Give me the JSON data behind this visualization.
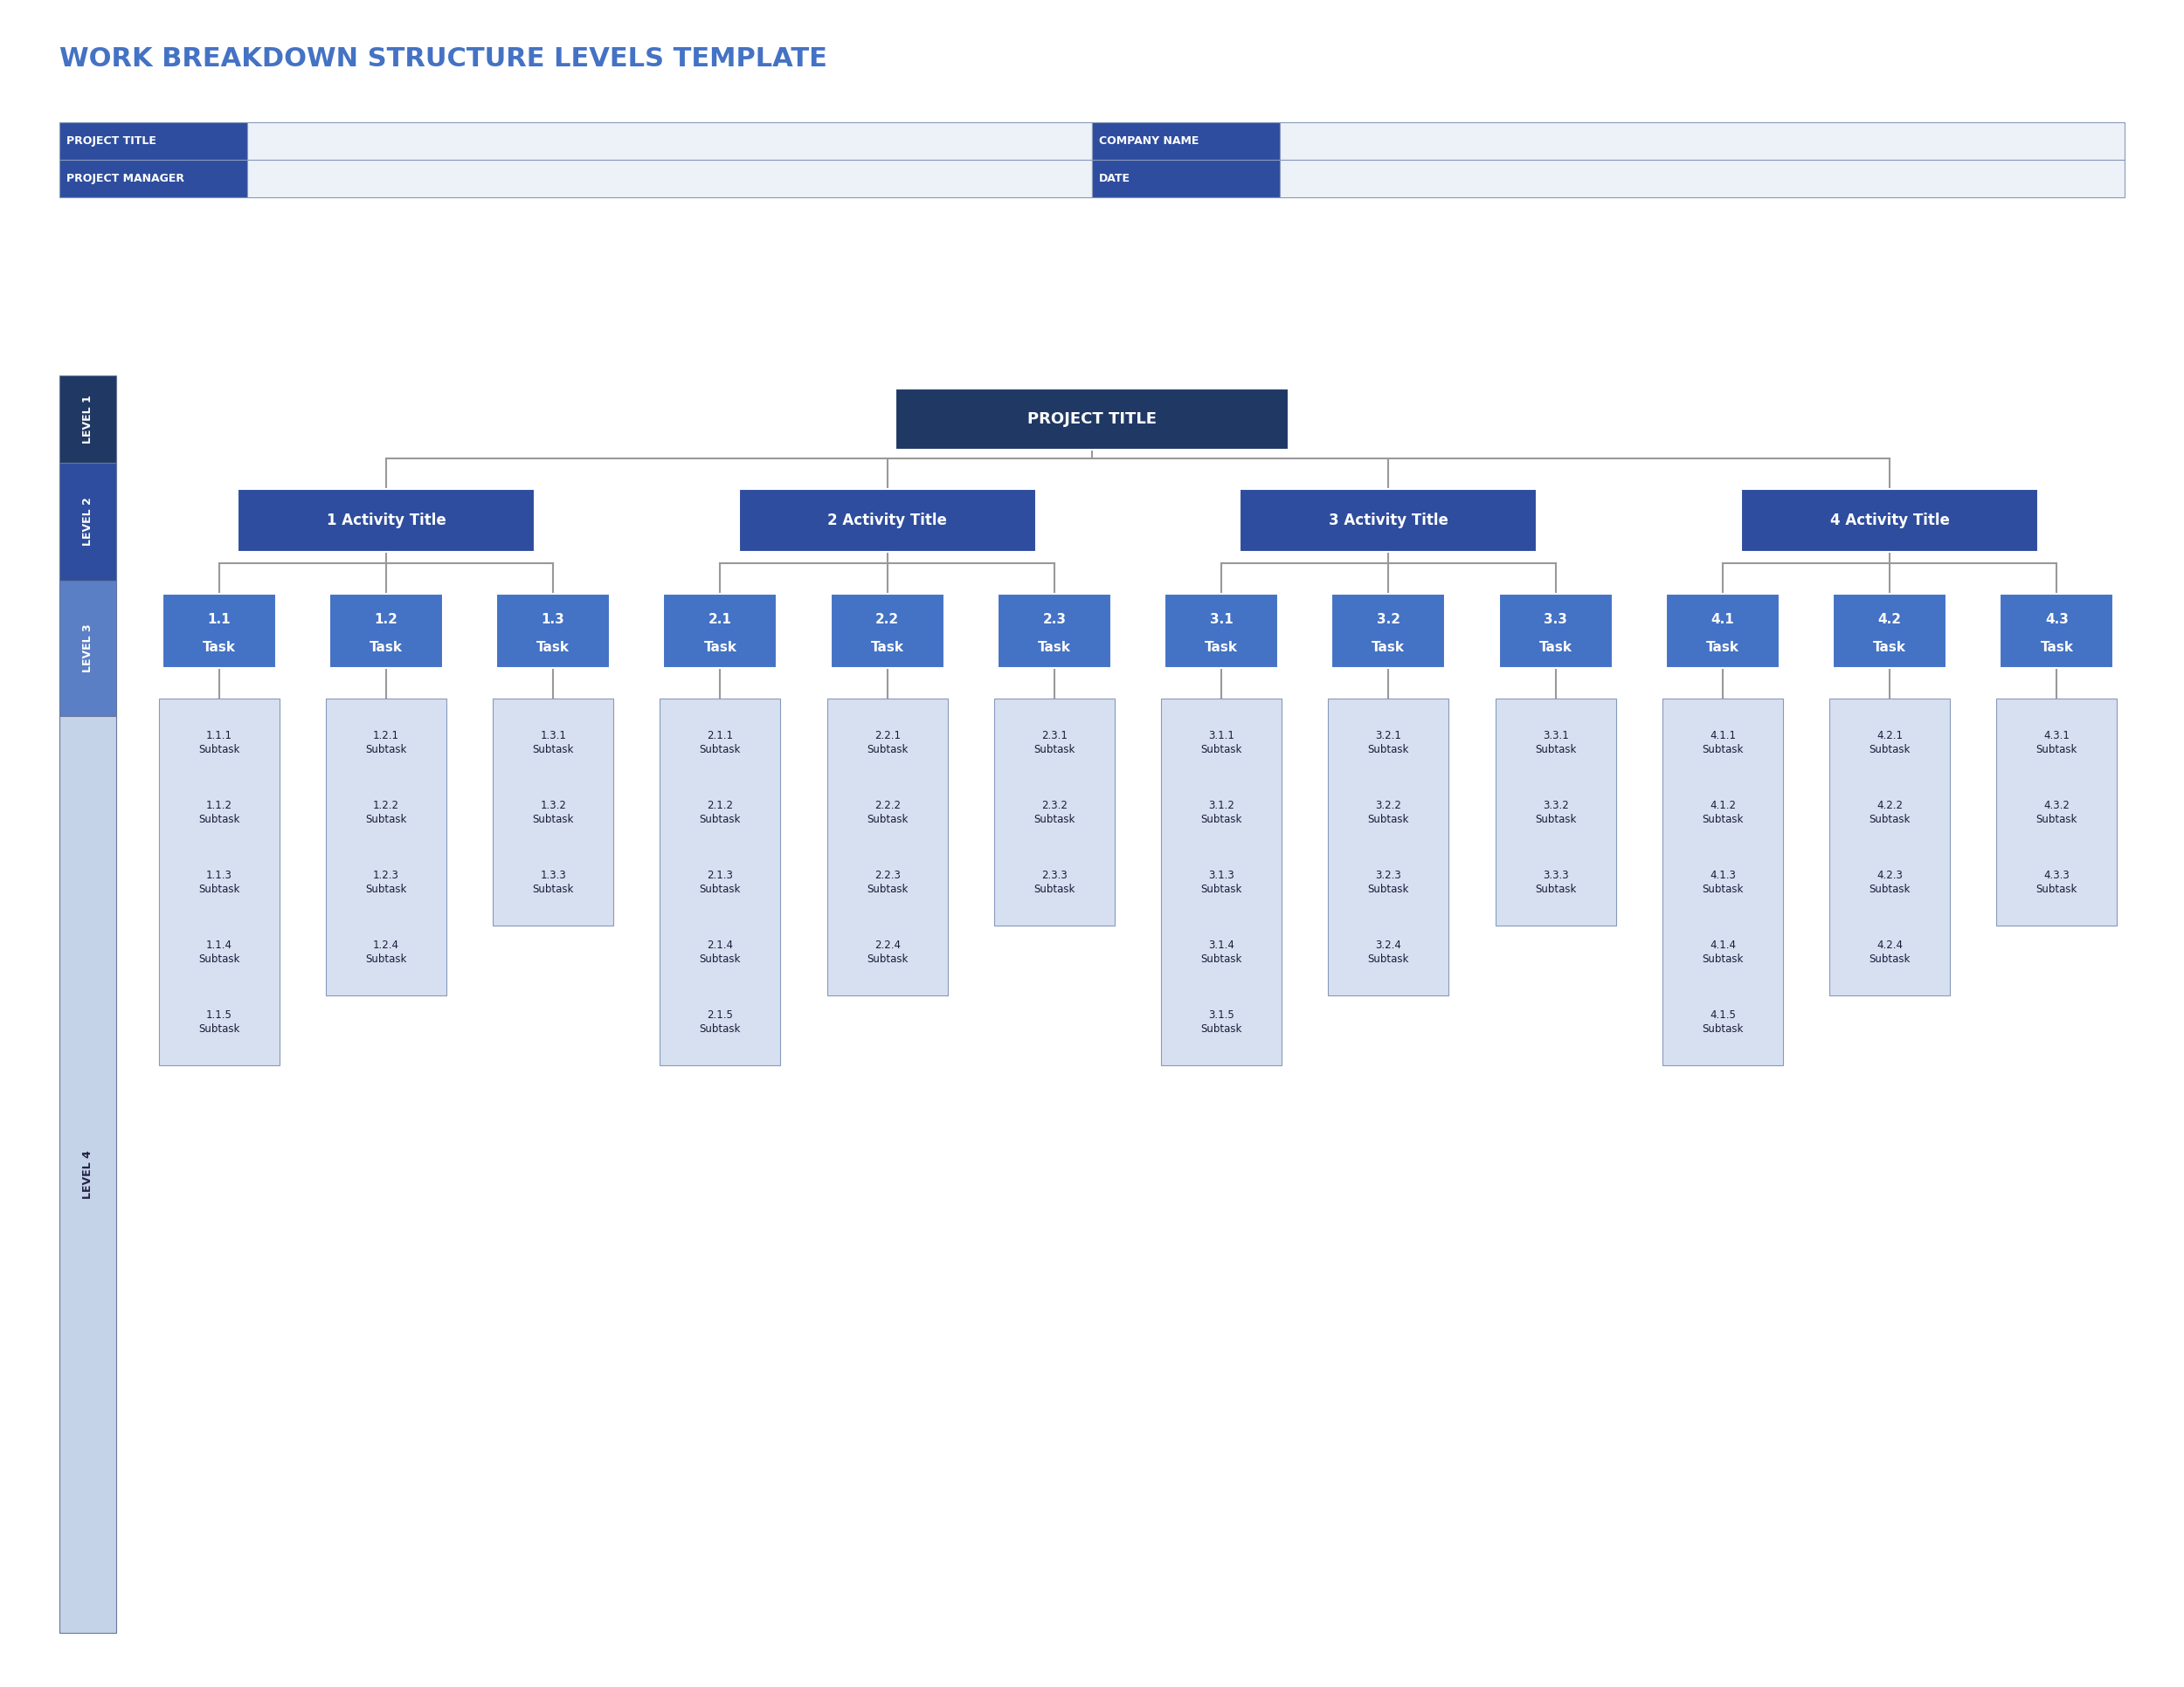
{
  "title": "WORK BREAKDOWN STRUCTURE LEVELS TEMPLATE",
  "title_color": "#4472C4",
  "dark_blue": "#1F3864",
  "medium_blue": "#2E4D9E",
  "light_blue": "#4472C4",
  "pale_blue": "#D6E0F0",
  "line_color": "#999999",
  "level_colors": [
    "#1F3864",
    "#2E4D9E",
    "#5B7FC4",
    "#C5D3E8"
  ],
  "level_text_colors": [
    "white",
    "white",
    "white",
    "#222244"
  ],
  "project_title": "PROJECT TITLE",
  "activities": [
    {
      "title": "1 Activity Title",
      "tasks": [
        {
          "id": "1.1",
          "label": "Task",
          "subtasks": [
            "1.1.1\nSubtask",
            "1.1.2\nSubtask",
            "1.1.3\nSubtask",
            "1.1.4\nSubtask",
            "1.1.5\nSubtask"
          ]
        },
        {
          "id": "1.2",
          "label": "Task",
          "subtasks": [
            "1.2.1\nSubtask",
            "1.2.2\nSubtask",
            "1.2.3\nSubtask",
            "1.2.4\nSubtask"
          ]
        },
        {
          "id": "1.3",
          "label": "Task",
          "subtasks": [
            "1.3.1\nSubtask",
            "1.3.2\nSubtask",
            "1.3.3\nSubtask"
          ]
        }
      ]
    },
    {
      "title": "2 Activity Title",
      "tasks": [
        {
          "id": "2.1",
          "label": "Task",
          "subtasks": [
            "2.1.1\nSubtask",
            "2.1.2\nSubtask",
            "2.1.3\nSubtask",
            "2.1.4\nSubtask",
            "2.1.5\nSubtask"
          ]
        },
        {
          "id": "2.2",
          "label": "Task",
          "subtasks": [
            "2.2.1\nSubtask",
            "2.2.2\nSubtask",
            "2.2.3\nSubtask",
            "2.2.4\nSubtask"
          ]
        },
        {
          "id": "2.3",
          "label": "Task",
          "subtasks": [
            "2.3.1\nSubtask",
            "2.3.2\nSubtask",
            "2.3.3\nSubtask"
          ]
        }
      ]
    },
    {
      "title": "3 Activity Title",
      "tasks": [
        {
          "id": "3.1",
          "label": "Task",
          "subtasks": [
            "3.1.1\nSubtask",
            "3.1.2\nSubtask",
            "3.1.3\nSubtask",
            "3.1.4\nSubtask",
            "3.1.5\nSubtask"
          ]
        },
        {
          "id": "3.2",
          "label": "Task",
          "subtasks": [
            "3.2.1\nSubtask",
            "3.2.2\nSubtask",
            "3.2.3\nSubtask",
            "3.2.4\nSubtask"
          ]
        },
        {
          "id": "3.3",
          "label": "Task",
          "subtasks": [
            "3.3.1\nSubtask",
            "3.3.2\nSubtask",
            "3.3.3\nSubtask"
          ]
        }
      ]
    },
    {
      "title": "4 Activity Title",
      "tasks": [
        {
          "id": "4.1",
          "label": "Task",
          "subtasks": [
            "4.1.1\nSubtask",
            "4.1.2\nSubtask",
            "4.1.3\nSubtask",
            "4.1.4\nSubtask",
            "4.1.5\nSubtask"
          ]
        },
        {
          "id": "4.2",
          "label": "Task",
          "subtasks": [
            "4.2.1\nSubtask",
            "4.2.2\nSubtask",
            "4.2.3\nSubtask",
            "4.2.4\nSubtask"
          ]
        },
        {
          "id": "4.3",
          "label": "Task",
          "subtasks": [
            "4.3.1\nSubtask",
            "4.3.2\nSubtask",
            "4.3.3\nSubtask"
          ]
        }
      ]
    }
  ]
}
